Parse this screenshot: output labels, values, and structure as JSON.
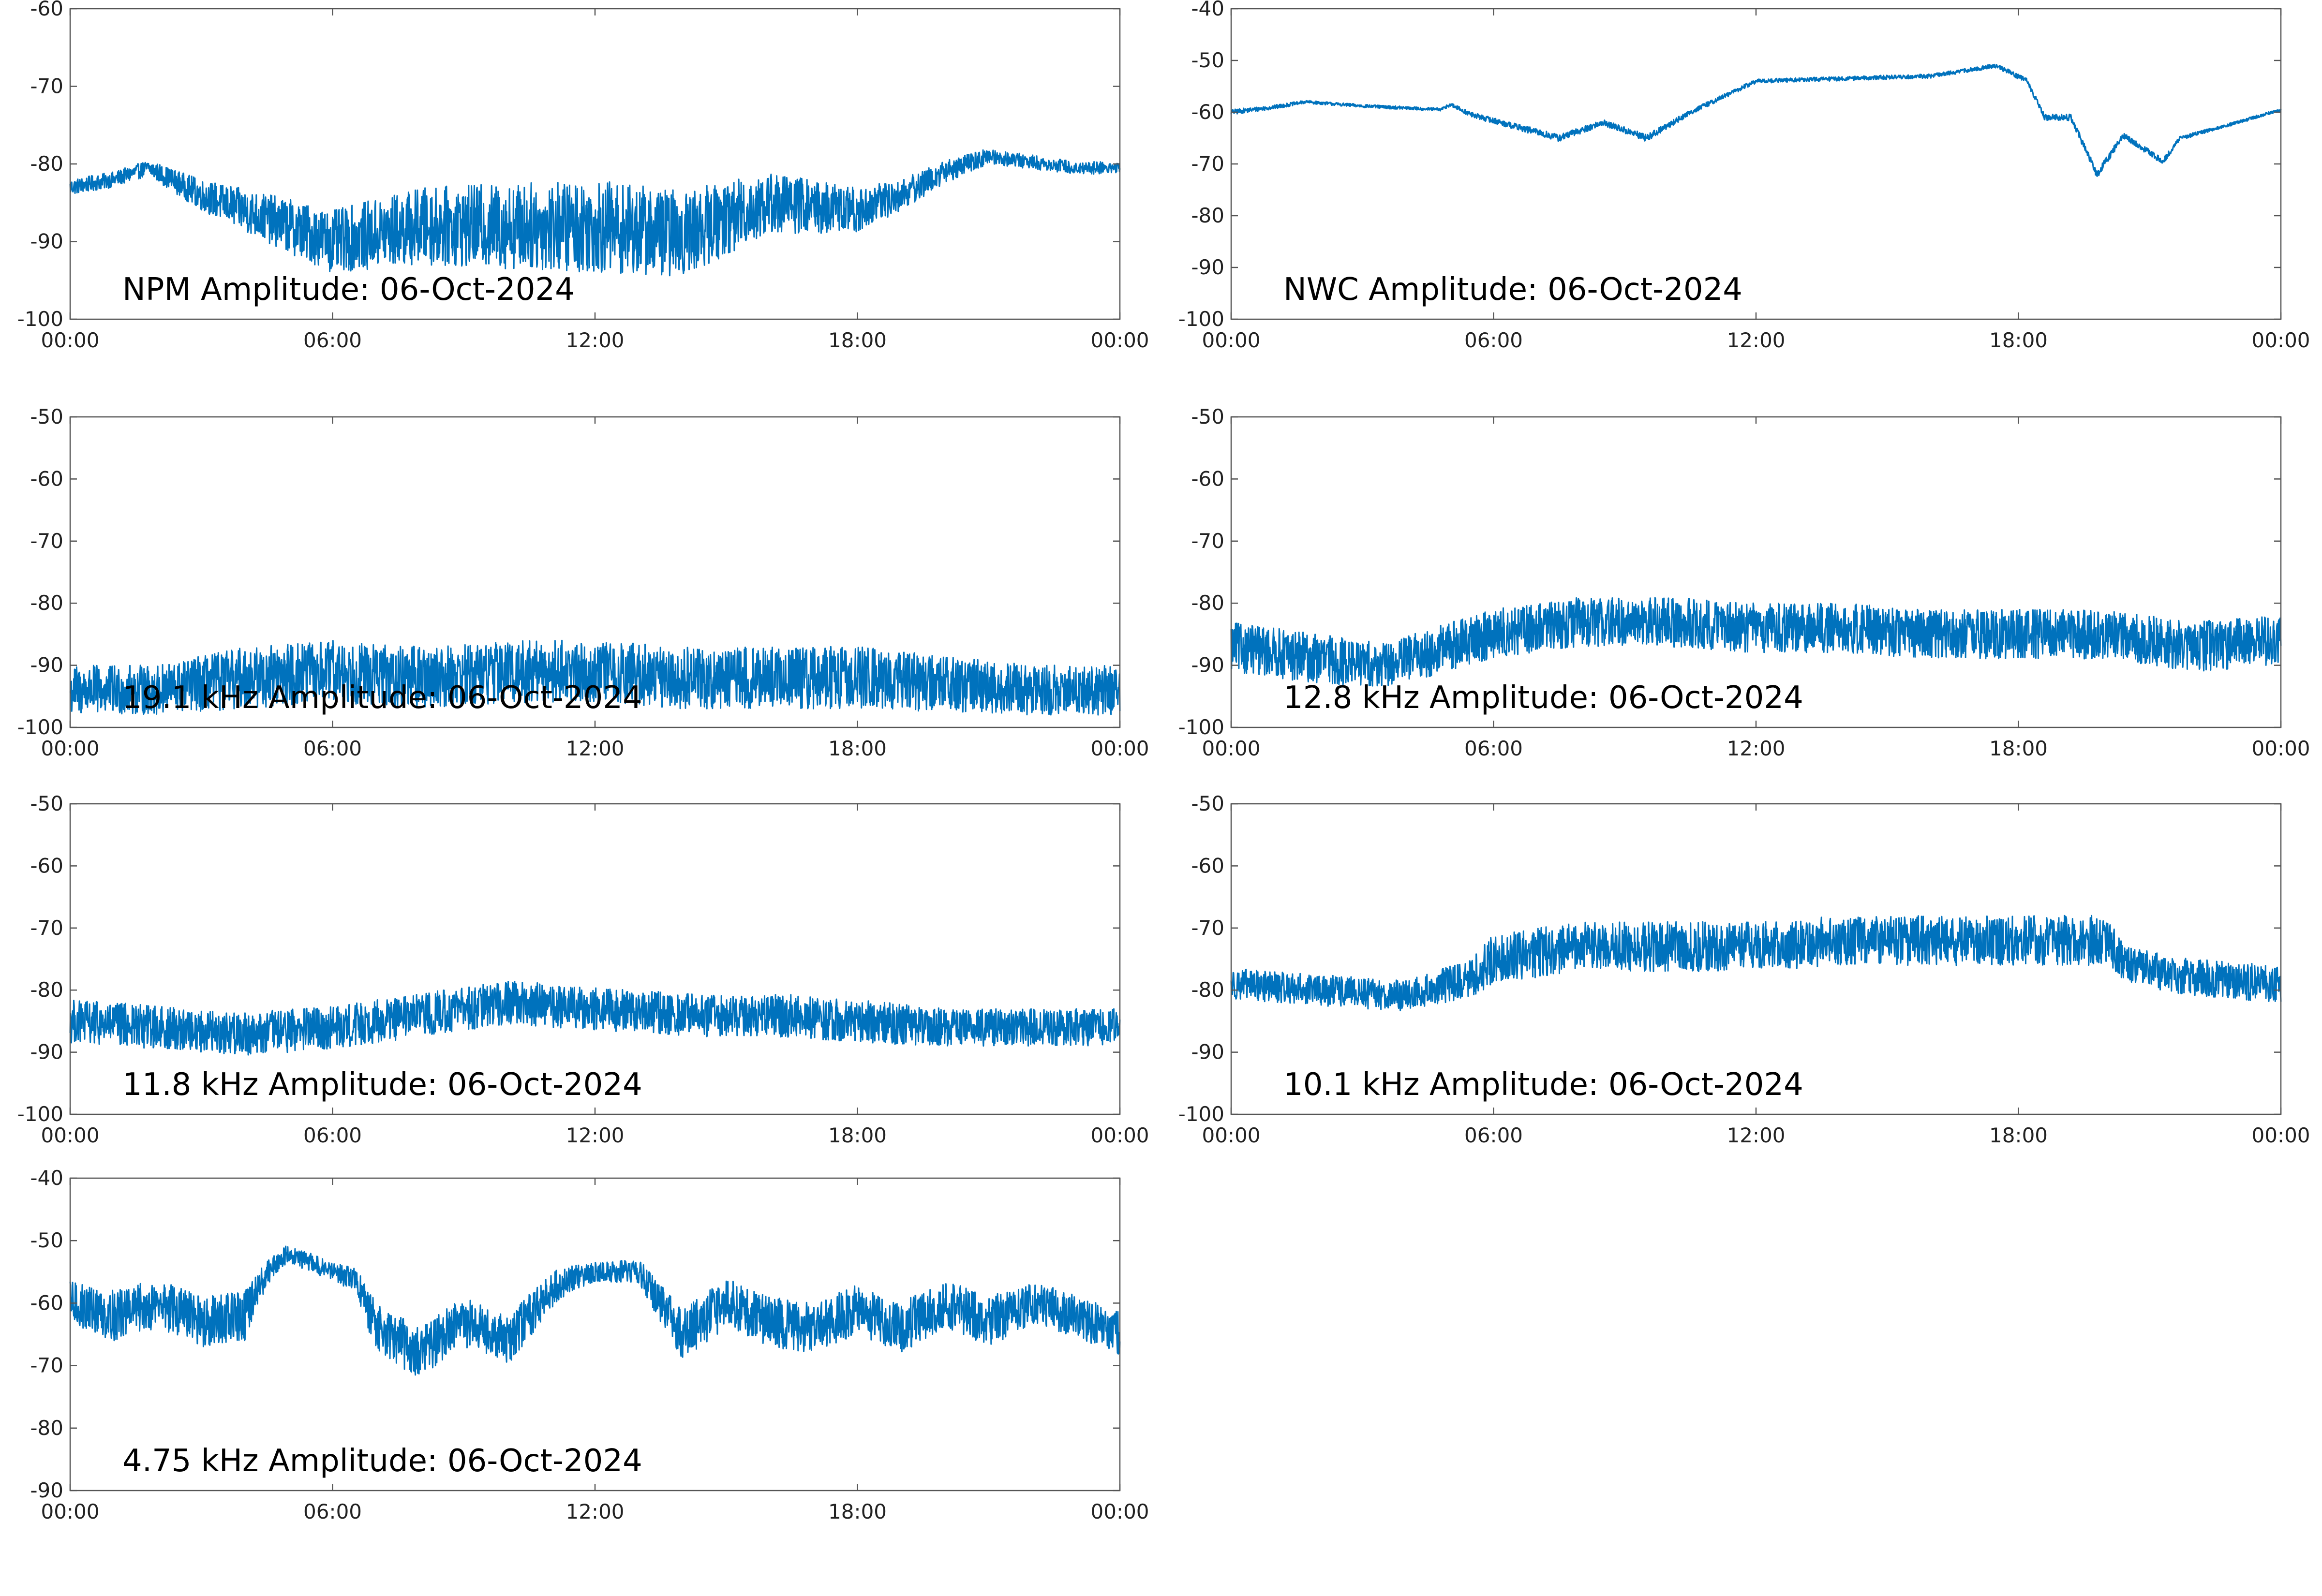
{
  "chart_data": [
    {
      "type": "line",
      "title": "NPM Amplitude: 06-Oct-2024",
      "x_ticks": [
        "00:00",
        "06:00",
        "12:00",
        "18:00",
        "00:00"
      ],
      "ylim": [
        -100,
        -60
      ],
      "y_ticks": [
        -100,
        -90,
        -80,
        -70,
        -60
      ],
      "color": "#0072BD",
      "series": [
        {
          "x_hours": [
            0,
            1,
            1.8,
            3,
            5,
            6,
            8,
            10,
            12,
            14,
            16,
            18,
            19,
            20,
            21,
            23,
            24
          ],
          "values": [
            -83,
            -82,
            -80.5,
            -84,
            -88,
            -90,
            -88,
            -88,
            -88,
            -89,
            -85,
            -86,
            -84,
            -81,
            -79,
            -80.5,
            -80.5
          ],
          "spread": [
            1,
            1,
            1,
            2,
            3.5,
            4,
            5,
            5.5,
            6,
            5.5,
            4,
            3,
            2,
            1.5,
            1,
            0.8,
            0.8
          ]
        }
      ]
    },
    {
      "type": "line",
      "title": "NWC Amplitude: 06-Oct-2024",
      "x_ticks": [
        "00:00",
        "06:00",
        "12:00",
        "18:00",
        "00:00"
      ],
      "ylim": [
        -100,
        -40
      ],
      "y_ticks": [
        -100,
        -90,
        -80,
        -70,
        -60,
        -50,
        -40
      ],
      "color": "#0072BD",
      "series": [
        {
          "x_hours": [
            0,
            1,
            1.7,
            3,
            4.8,
            5,
            5.5,
            7.5,
            8.5,
            9.5,
            10.5,
            12,
            14,
            16,
            17.5,
            18.2,
            18.6,
            19.2,
            19.8,
            20.4,
            21.3,
            21.7,
            23,
            24
          ],
          "values": [
            -60,
            -59,
            -58,
            -58.8,
            -59.5,
            -58.5,
            -60.5,
            -65,
            -62,
            -65,
            -60,
            -54,
            -53.5,
            -53,
            -51,
            -54,
            -61,
            -61,
            -72,
            -64.5,
            -69.5,
            -65,
            -62,
            -59.5
          ],
          "spread": [
            0.5,
            0.4,
            0.3,
            0.3,
            0.3,
            0.4,
            0.5,
            0.7,
            0.6,
            0.7,
            0.5,
            0.4,
            0.4,
            0.4,
            0.4,
            0.5,
            0.6,
            0.6,
            0.8,
            0.6,
            0.6,
            0.4,
            0.3,
            0.3
          ]
        }
      ]
    },
    {
      "type": "line",
      "title": "19.1 kHz Amplitude: 06-Oct-2024",
      "x_ticks": [
        "00:00",
        "06:00",
        "12:00",
        "18:00",
        "00:00"
      ],
      "ylim": [
        -100,
        -50
      ],
      "y_ticks": [
        -100,
        -90,
        -80,
        -70,
        -60,
        -50
      ],
      "color": "#0072BD",
      "series": [
        {
          "x_hours": [
            0,
            2,
            4,
            6,
            8,
            10,
            12,
            14,
            16,
            18,
            20,
            22,
            24
          ],
          "values": [
            -94,
            -94,
            -92,
            -91,
            -92,
            -91,
            -91,
            -92,
            -92,
            -92,
            -93,
            -94,
            -94
          ],
          "spread": [
            4,
            4,
            5,
            5,
            5,
            5,
            5,
            5,
            5,
            5,
            4.5,
            4,
            4
          ]
        }
      ]
    },
    {
      "type": "line",
      "title": "12.8 kHz Amplitude: 06-Oct-2024",
      "x_ticks": [
        "00:00",
        "06:00",
        "12:00",
        "18:00",
        "00:00"
      ],
      "ylim": [
        -100,
        -50
      ],
      "y_ticks": [
        -100,
        -90,
        -80,
        -70,
        -60,
        -50
      ],
      "color": "#0072BD",
      "series": [
        {
          "x_hours": [
            0,
            2,
            3.5,
            5,
            6,
            8,
            10,
            12,
            14,
            16,
            18,
            20,
            22,
            24
          ],
          "values": [
            -87,
            -89,
            -90,
            -87,
            -85,
            -83,
            -83,
            -84,
            -84,
            -85,
            -85,
            -85,
            -87,
            -86
          ],
          "spread": [
            4,
            4,
            3.5,
            4,
            4,
            4,
            4,
            4,
            4,
            4,
            4,
            4,
            4,
            4
          ]
        }
      ]
    },
    {
      "type": "line",
      "title": "11.8 kHz Amplitude: 06-Oct-2024",
      "x_ticks": [
        "00:00",
        "06:00",
        "12:00",
        "18:00",
        "00:00"
      ],
      "ylim": [
        -100,
        -50
      ],
      "y_ticks": [
        -100,
        -90,
        -80,
        -70,
        -60,
        -50
      ],
      "color": "#0072BD",
      "series": [
        {
          "x_hours": [
            0,
            2,
            4,
            6,
            8,
            10,
            12,
            14,
            16,
            18,
            20,
            22,
            24
          ],
          "values": [
            -85,
            -86,
            -87,
            -86,
            -84,
            -82,
            -83,
            -84,
            -84,
            -85,
            -86,
            -86,
            -86
          ],
          "spread": [
            3.5,
            3.5,
            3.5,
            3.5,
            3.5,
            3.5,
            3.5,
            3.5,
            3.5,
            3.5,
            3,
            3,
            3
          ]
        }
      ]
    },
    {
      "type": "line",
      "title": "10.1 kHz Amplitude: 06-Oct-2024",
      "x_ticks": [
        "00:00",
        "06:00",
        "12:00",
        "18:00",
        "00:00"
      ],
      "ylim": [
        -100,
        -50
      ],
      "y_ticks": [
        -100,
        -90,
        -80,
        -70,
        -60,
        -50
      ],
      "color": "#0072BD",
      "series": [
        {
          "x_hours": [
            0,
            2,
            4,
            5.5,
            6,
            8,
            10,
            12,
            14,
            16,
            18,
            20,
            20.5,
            22,
            24
          ],
          "values": [
            -79,
            -80,
            -81,
            -78,
            -75,
            -73,
            -73,
            -73,
            -72,
            -72,
            -72,
            -72,
            -76,
            -78,
            -79
          ],
          "spread": [
            2.5,
            2.5,
            2.5,
            3,
            4,
            4,
            4,
            4,
            4,
            4,
            4,
            4,
            3,
            3,
            3
          ]
        }
      ]
    },
    {
      "type": "line",
      "title": "4.75 kHz Amplitude: 06-Oct-2024",
      "x_ticks": [
        "00:00",
        "06:00",
        "12:00",
        "18:00",
        "00:00"
      ],
      "ylim": [
        -90,
        -40
      ],
      "y_ticks": [
        -90,
        -80,
        -70,
        -60,
        -50,
        -40
      ],
      "color": "#0072BD",
      "series": [
        {
          "x_hours": [
            0,
            1,
            2,
            3,
            4,
            4.5,
            5,
            6,
            6.5,
            7,
            8,
            9,
            10,
            11,
            11.5,
            12,
            13,
            14,
            15,
            16,
            17,
            18,
            19,
            20,
            21,
            22,
            23,
            24
          ],
          "values": [
            -60,
            -62,
            -60,
            -63,
            -62,
            -55,
            -52,
            -55,
            -56,
            -64,
            -68,
            -63,
            -66,
            -58,
            -56,
            -55,
            -55,
            -65,
            -60,
            -63,
            -64,
            -61,
            -64,
            -60,
            -63,
            -60,
            -62,
            -65
          ],
          "spread": [
            3.5,
            4,
            4,
            4,
            4,
            2,
            1.5,
            1.5,
            2,
            4,
            4,
            4,
            4,
            3,
            2,
            1.5,
            2,
            4,
            4,
            4,
            4,
            4,
            4,
            4,
            4,
            3.5,
            3.5,
            3.5
          ]
        }
      ]
    }
  ]
}
